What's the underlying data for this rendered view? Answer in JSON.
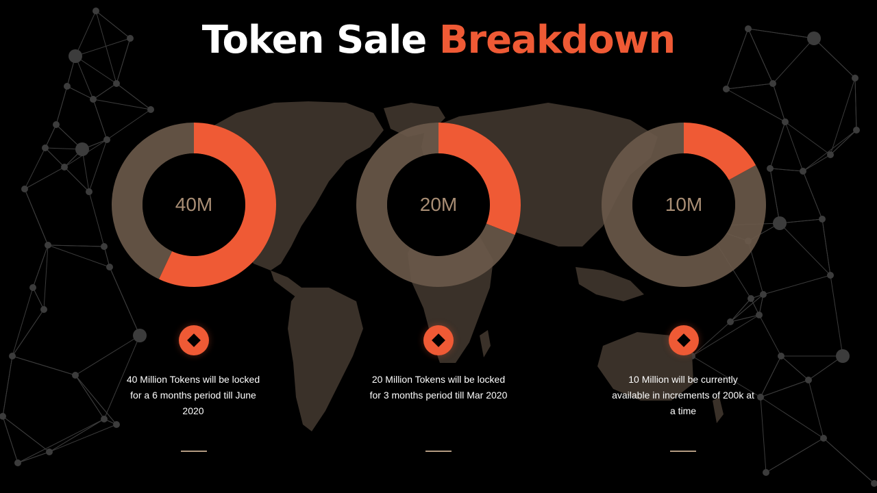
{
  "title": {
    "part1": "Token Sale",
    "part2": "Breakdown"
  },
  "colors": {
    "accent": "#ef5a35",
    "ring": "#6b5a4a",
    "label": "#a88d74",
    "map": "#3a3129",
    "network": "#4a4a4a",
    "background": "#000000"
  },
  "chart_data": [
    {
      "type": "pie",
      "center_label": "40M",
      "values": [
        57,
        43
      ],
      "colors": [
        "#ef5a35",
        "#6b5a4a"
      ]
    },
    {
      "type": "pie",
      "center_label": "20M",
      "values": [
        31,
        69
      ],
      "colors": [
        "#ef5a35",
        "#6b5a4a"
      ]
    },
    {
      "type": "pie",
      "center_label": "10M",
      "values": [
        17,
        83
      ],
      "colors": [
        "#ef5a35",
        "#6b5a4a"
      ]
    }
  ],
  "descriptions": [
    {
      "line1": "40 Million Tokens will be locked",
      "line2": "for a 6 months  period till June",
      "line3": "2020"
    },
    {
      "line1": "20 Million Tokens will be locked",
      "line2": "for 3 months  period till Mar 2020",
      "line3": ""
    },
    {
      "line1": "10 Million will be currently",
      "line2": "available in increments of 200k at",
      "line3": "a time"
    }
  ],
  "icons": {
    "marker": "diamond-icon"
  }
}
